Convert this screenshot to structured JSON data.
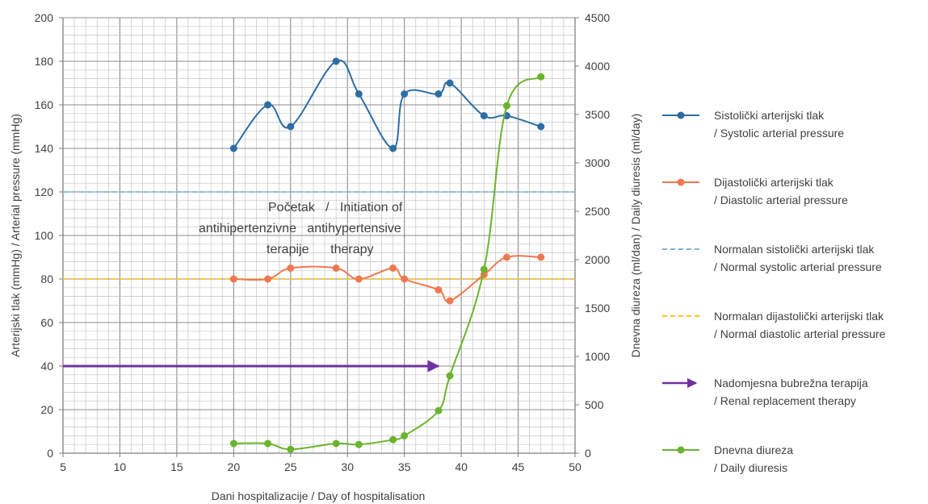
{
  "chart_data": {
    "type": "line",
    "xlabel": "Dani hospitalizacije / Day of hospitalisation",
    "ylabel_left": "Arterijski tlak (mmHg) / Arterial pressure (mmHg)",
    "ylabel_right": "Dnevna diureza (ml/dan) / Daily diuresis (ml/day)",
    "xlim": [
      5,
      50
    ],
    "ylim_left": [
      0,
      200
    ],
    "ylim_right": [
      0,
      4500
    ],
    "x_ticks": [
      "5",
      "10",
      "15",
      "20",
      "25",
      "30",
      "35",
      "40",
      "45",
      "50"
    ],
    "y_left_ticks": [
      "0",
      "20",
      "40",
      "60",
      "80",
      "100",
      "120",
      "140",
      "160",
      "180",
      "200"
    ],
    "y_right_ticks": [
      "0",
      "500",
      "1000",
      "1500",
      "2000",
      "2500",
      "3000",
      "3500",
      "4000",
      "4500"
    ],
    "grid": true,
    "legend_position": "right",
    "annotation": {
      "line1": "Početak   /   Initiation of",
      "line2": "antihipertenzivne   antihypertensive",
      "line3": "terapije      therapy"
    },
    "series": [
      {
        "key": "sys",
        "label1": "Sistolički arterijski tlak",
        "label2": "/ Systolic arterial pressure",
        "axis": "left",
        "style": "line-marker",
        "color": "#2e6da4",
        "points": [
          [
            20,
            140
          ],
          [
            23,
            160
          ],
          [
            25,
            150
          ],
          [
            29,
            180
          ],
          [
            31,
            165
          ],
          [
            34,
            140
          ],
          [
            35,
            165
          ],
          [
            38,
            165
          ],
          [
            39,
            170
          ],
          [
            42,
            155
          ],
          [
            44,
            155
          ],
          [
            47,
            150
          ]
        ]
      },
      {
        "key": "dia",
        "label1": "Dijastolički arterijski tlak",
        "label2": "/ Diastolic arterial pressure",
        "axis": "left",
        "style": "line-marker",
        "color": "#f07850",
        "points": [
          [
            20,
            80
          ],
          [
            23,
            80
          ],
          [
            25,
            85
          ],
          [
            29,
            85
          ],
          [
            31,
            80
          ],
          [
            34,
            85
          ],
          [
            35,
            80
          ],
          [
            38,
            75
          ],
          [
            39,
            70
          ],
          [
            42,
            82
          ],
          [
            44,
            90
          ],
          [
            47,
            90
          ]
        ]
      },
      {
        "key": "normsys",
        "label1": "Normalan sistolički arterijski tlak",
        "label2": "/ Normal systolic arterial pressure",
        "axis": "left",
        "style": "dashed",
        "color": "#7bb6e0",
        "points": [
          [
            5,
            120
          ],
          [
            50,
            120
          ]
        ]
      },
      {
        "key": "normdia",
        "label1": "Normalan dijastolički arterijski tlak",
        "label2": "/ Normal diastolic arterial pressure",
        "axis": "left",
        "style": "dashed",
        "color": "#f5c518",
        "points": [
          [
            5,
            80
          ],
          [
            50,
            80
          ]
        ]
      },
      {
        "key": "rrt",
        "label1": "Nadomjesna bubrežna terapija",
        "label2": "/ Renal replacement therapy",
        "axis": "left",
        "style": "arrow",
        "color": "#7030a0",
        "points": [
          [
            5,
            40
          ],
          [
            38,
            40
          ]
        ]
      },
      {
        "key": "diur",
        "label1": "Dnevna diureza",
        "label2": "/ Daily diuresis",
        "axis": "right",
        "style": "line-marker",
        "color": "#6ab42d",
        "points": [
          [
            20,
            100
          ],
          [
            23,
            100
          ],
          [
            25,
            40
          ],
          [
            29,
            100
          ],
          [
            31,
            90
          ],
          [
            34,
            140
          ],
          [
            35,
            180
          ],
          [
            38,
            440
          ],
          [
            39,
            800
          ],
          [
            42,
            1900
          ],
          [
            44,
            3590
          ],
          [
            47,
            3890
          ]
        ]
      }
    ]
  }
}
